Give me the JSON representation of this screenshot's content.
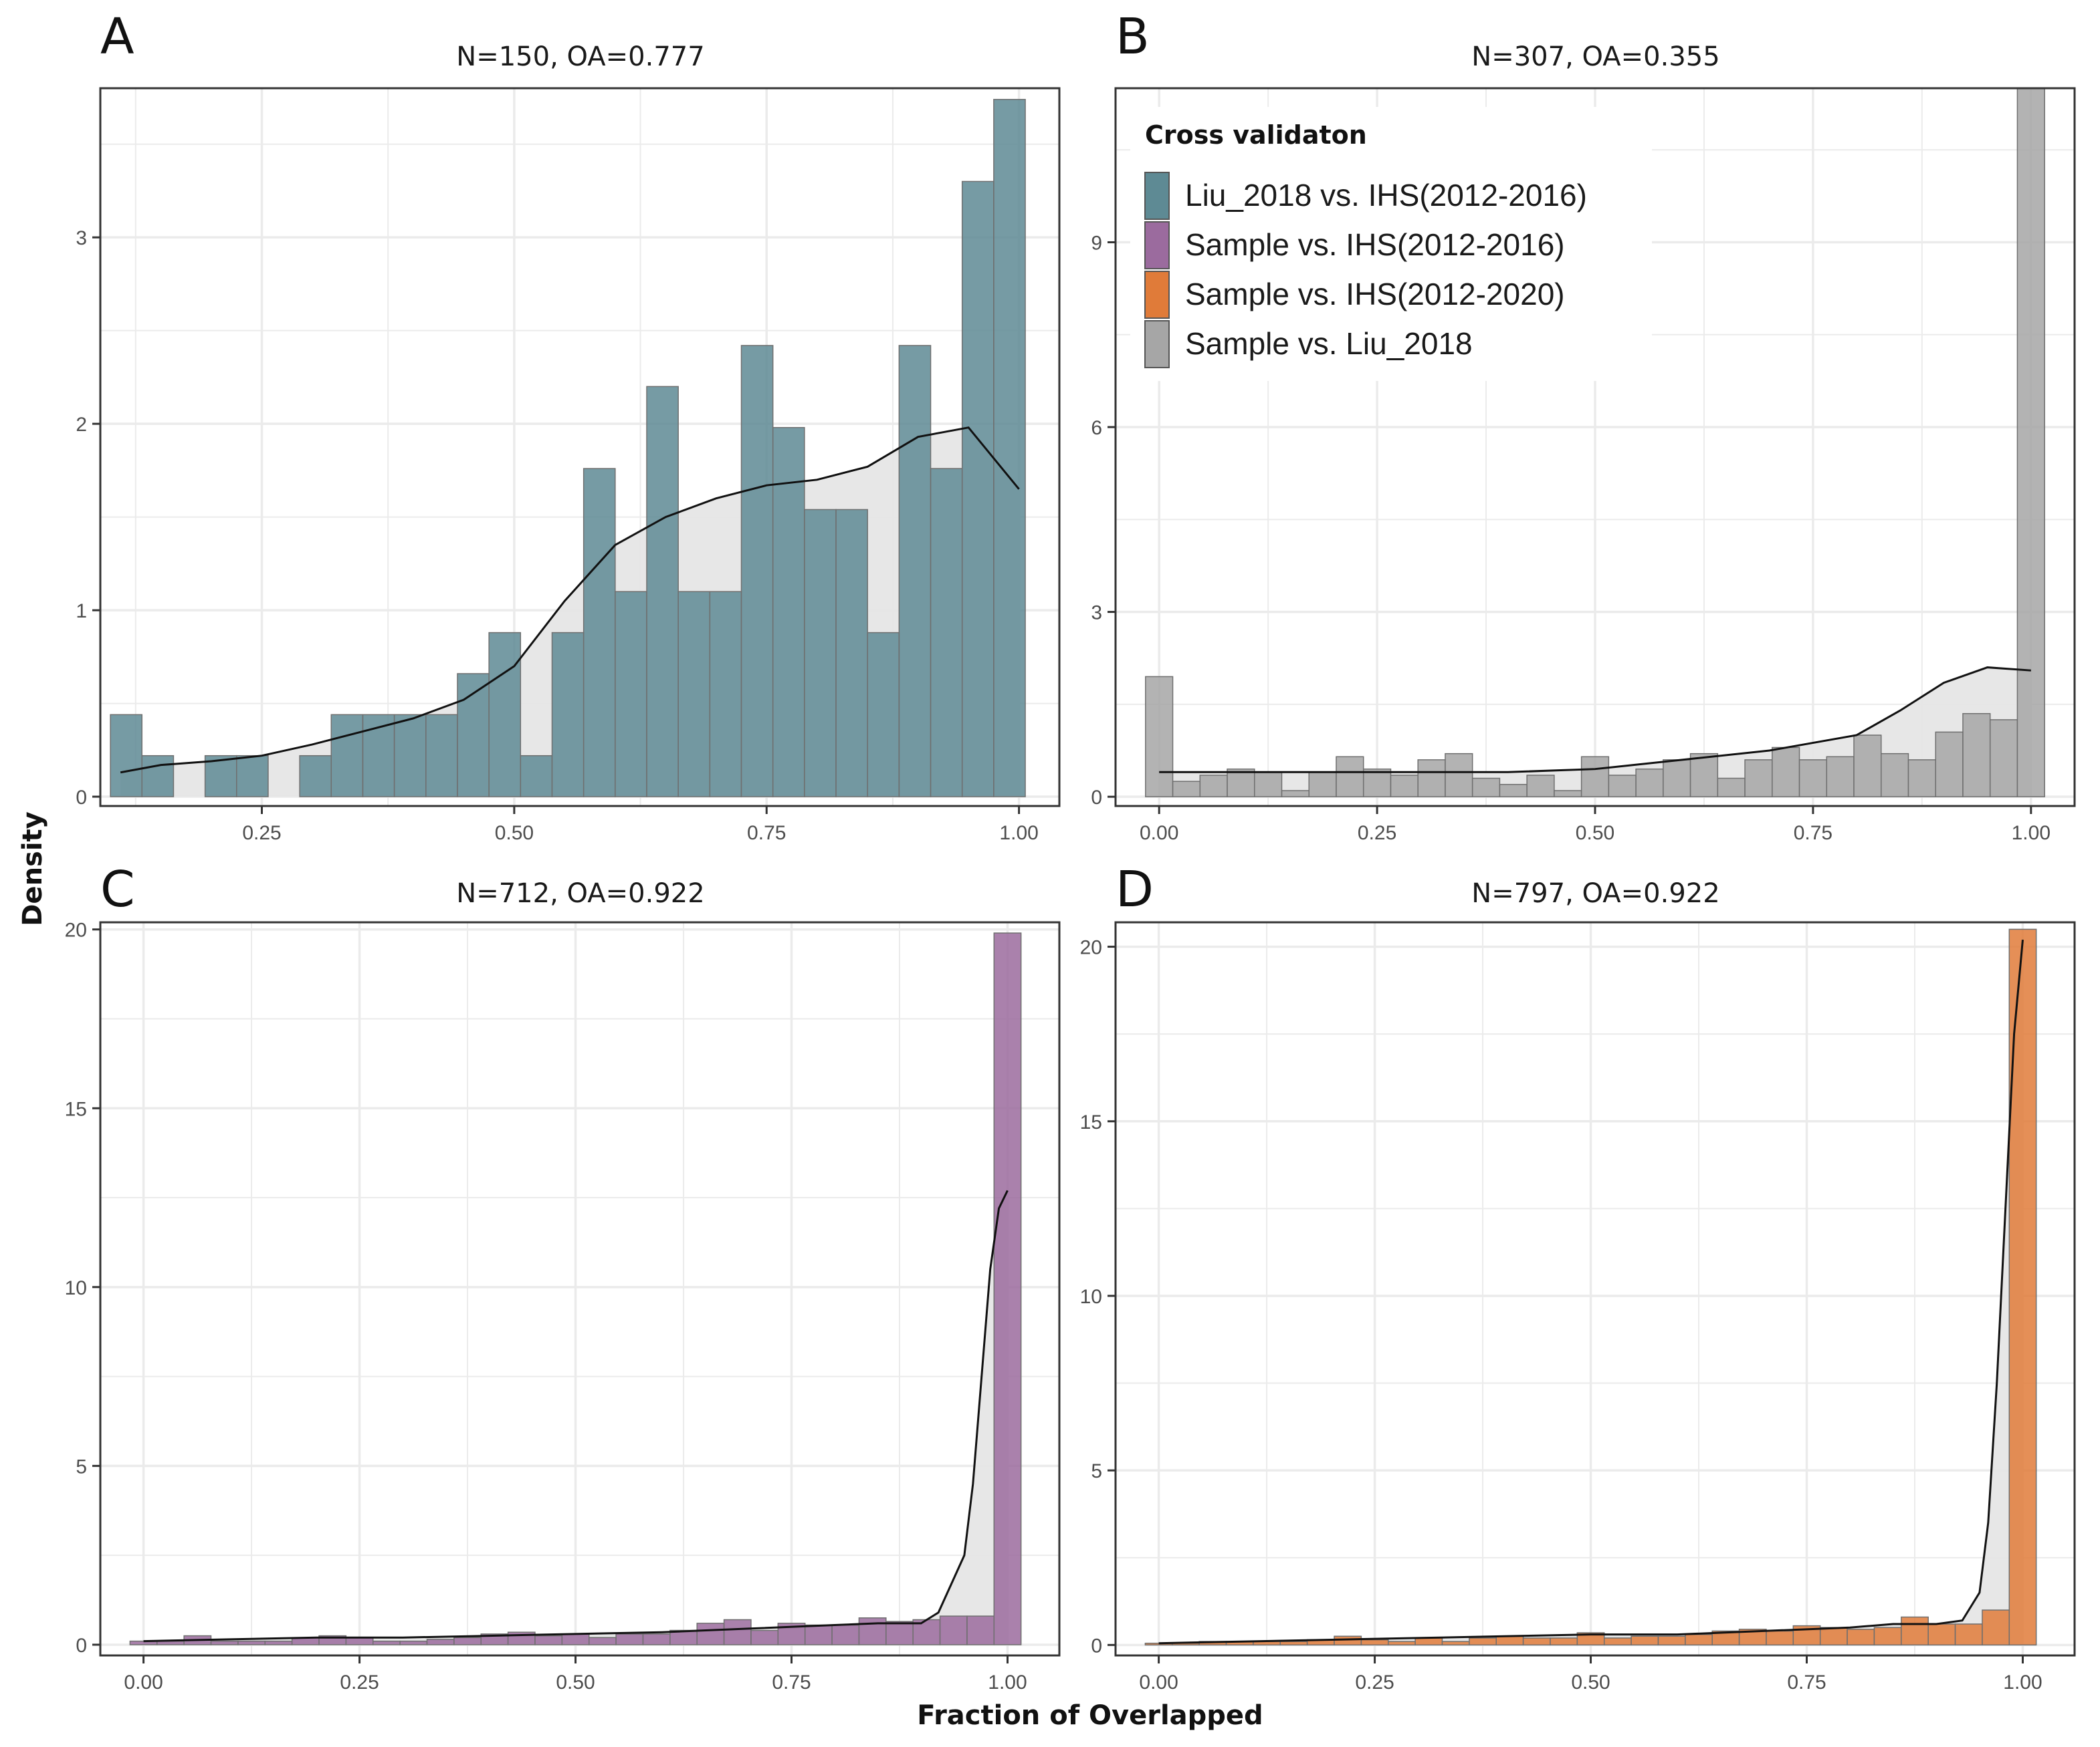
{
  "figure": {
    "x_title": "Fraction of Overlapped",
    "y_title": "Density"
  },
  "legend": {
    "title": "Cross validaton",
    "items": [
      {
        "label": "Liu_2018 vs. IHS(2012-2016)",
        "color": "#5e8a94"
      },
      {
        "label": "Sample vs. IHS(2012-2016)",
        "color": "#9b6b9e"
      },
      {
        "label": "Sample vs. IHS(2012-2020)",
        "color": "#e07b39"
      },
      {
        "label": "Sample vs. Liu_2018",
        "color": "#a6a6a6"
      }
    ]
  },
  "colors": {
    "panel_border": "#333333",
    "grid": "#ebebeb",
    "density_fill": "#e6e6e6",
    "density_line": "#111111"
  },
  "chart_data": [
    {
      "tag": "A",
      "type": "bar",
      "title": "N=150, OA=0.777",
      "xlabel": "Fraction of Overlapped",
      "ylabel": "Density",
      "color": "#5e8a94",
      "xlim": [
        0.09,
        1.04
      ],
      "ylim": [
        -0.05,
        3.8
      ],
      "x_ticks": [
        0.25,
        0.5,
        0.75,
        1.0
      ],
      "x_tick_labels": [
        "0.25",
        "0.50",
        "0.75",
        "1.00"
      ],
      "y_ticks": [
        0,
        1,
        2,
        3
      ],
      "y_tick_labels": [
        "0",
        "1",
        "2",
        "3"
      ],
      "bin_width": 0.03125,
      "bin_start": 0.1,
      "values": [
        0.44,
        0.22,
        0.0,
        0.22,
        0.22,
        0.0,
        0.22,
        0.44,
        0.44,
        0.44,
        0.44,
        0.66,
        0.88,
        0.22,
        0.88,
        1.76,
        1.1,
        2.2,
        1.1,
        1.1,
        2.42,
        1.98,
        1.54,
        1.54,
        0.88,
        2.42,
        1.76,
        3.3,
        3.74
      ],
      "density_x": [
        0.11,
        0.15,
        0.2,
        0.25,
        0.3,
        0.35,
        0.4,
        0.45,
        0.5,
        0.55,
        0.6,
        0.65,
        0.7,
        0.75,
        0.8,
        0.85,
        0.9,
        0.95,
        1.0
      ],
      "density_y": [
        0.13,
        0.17,
        0.19,
        0.22,
        0.28,
        0.35,
        0.42,
        0.52,
        0.7,
        1.05,
        1.35,
        1.5,
        1.6,
        1.67,
        1.7,
        1.77,
        1.93,
        1.98,
        1.65
      ]
    },
    {
      "tag": "B",
      "type": "bar",
      "title": "N=307, OA=0.355",
      "xlabel": "Fraction of Overlapped",
      "ylabel": "Density",
      "color": "#a6a6a6",
      "xlim": [
        -0.05,
        1.05
      ],
      "ylim": [
        -0.15,
        11.5
      ],
      "x_ticks": [
        0.0,
        0.25,
        0.5,
        0.75,
        1.0
      ],
      "x_tick_labels": [
        "0.00",
        "0.25",
        "0.50",
        "0.75",
        "1.00"
      ],
      "y_ticks": [
        0,
        3,
        6,
        9
      ],
      "y_tick_labels": [
        "0",
        "3",
        "6",
        "9"
      ],
      "bin_width": 0.03125,
      "bin_start": -0.015625,
      "values": [
        1.95,
        0.25,
        0.35,
        0.45,
        0.4,
        0.1,
        0.4,
        0.65,
        0.45,
        0.35,
        0.6,
        0.7,
        0.3,
        0.2,
        0.35,
        0.1,
        0.65,
        0.35,
        0.45,
        0.6,
        0.7,
        0.3,
        0.6,
        0.8,
        0.6,
        0.65,
        1.0,
        0.7,
        0.6,
        1.05,
        1.35,
        1.25,
        11.5
      ],
      "density_x": [
        0.0,
        0.1,
        0.2,
        0.3,
        0.4,
        0.5,
        0.6,
        0.7,
        0.8,
        0.85,
        0.9,
        0.95,
        1.0
      ],
      "density_y": [
        0.4,
        0.4,
        0.4,
        0.4,
        0.4,
        0.45,
        0.6,
        0.75,
        1.0,
        1.4,
        1.85,
        2.1,
        2.05
      ]
    },
    {
      "tag": "C",
      "type": "bar",
      "title": "N=712, OA=0.922",
      "xlabel": "Fraction of Overlapped",
      "ylabel": "Density",
      "color": "#9b6b9e",
      "xlim": [
        -0.05,
        1.06
      ],
      "ylim": [
        -0.3,
        20.2
      ],
      "x_ticks": [
        0.0,
        0.25,
        0.5,
        0.75,
        1.0
      ],
      "x_tick_labels": [
        "0.00",
        "0.25",
        "0.50",
        "0.75",
        "1.00"
      ],
      "y_ticks": [
        0,
        5,
        10,
        15,
        20
      ],
      "y_tick_labels": [
        "0",
        "5",
        "10",
        "15",
        "20"
      ],
      "bin_width": 0.03125,
      "bin_start": -0.015625,
      "values": [
        0.1,
        0.1,
        0.25,
        0.1,
        0.1,
        0.1,
        0.2,
        0.25,
        0.2,
        0.1,
        0.1,
        0.15,
        0.2,
        0.3,
        0.35,
        0.25,
        0.3,
        0.2,
        0.3,
        0.3,
        0.4,
        0.6,
        0.7,
        0.4,
        0.6,
        0.55,
        0.55,
        0.75,
        0.65,
        0.7,
        0.8,
        0.8,
        19.9
      ],
      "density_x": [
        0.0,
        0.1,
        0.2,
        0.3,
        0.4,
        0.5,
        0.6,
        0.7,
        0.8,
        0.85,
        0.9,
        0.92,
        0.95,
        0.96,
        0.97,
        0.98,
        0.99,
        1.0
      ],
      "density_y": [
        0.1,
        0.15,
        0.2,
        0.2,
        0.25,
        0.3,
        0.35,
        0.45,
        0.55,
        0.6,
        0.6,
        0.9,
        2.5,
        4.5,
        7.5,
        10.5,
        12.2,
        12.7
      ]
    },
    {
      "tag": "D",
      "type": "bar",
      "title": "N=797, OA=0.922",
      "xlabel": "Fraction of Overlapped",
      "ylabel": "Density",
      "color": "#e07b39",
      "xlim": [
        -0.05,
        1.06
      ],
      "ylim": [
        -0.3,
        20.7
      ],
      "x_ticks": [
        0.0,
        0.25,
        0.5,
        0.75,
        1.0
      ],
      "x_tick_labels": [
        "0.00",
        "0.25",
        "0.50",
        "0.75",
        "1.00"
      ],
      "y_ticks": [
        0,
        5,
        10,
        15,
        20
      ],
      "y_tick_labels": [
        "0",
        "5",
        "10",
        "15",
        "20"
      ],
      "bin_width": 0.03125,
      "bin_start": -0.015625,
      "values": [
        0.05,
        0.05,
        0.1,
        0.1,
        0.1,
        0.1,
        0.15,
        0.25,
        0.15,
        0.1,
        0.2,
        0.1,
        0.2,
        0.25,
        0.2,
        0.2,
        0.35,
        0.2,
        0.25,
        0.25,
        0.3,
        0.4,
        0.45,
        0.4,
        0.55,
        0.5,
        0.45,
        0.5,
        0.8,
        0.6,
        0.6,
        1.0,
        20.5
      ],
      "density_x": [
        0.0,
        0.1,
        0.2,
        0.3,
        0.4,
        0.5,
        0.6,
        0.7,
        0.8,
        0.85,
        0.9,
        0.93,
        0.95,
        0.96,
        0.97,
        0.98,
        0.99,
        1.0
      ],
      "density_y": [
        0.05,
        0.1,
        0.15,
        0.2,
        0.25,
        0.3,
        0.3,
        0.4,
        0.5,
        0.6,
        0.6,
        0.7,
        1.5,
        3.5,
        7.5,
        12.5,
        17.5,
        20.2
      ]
    }
  ]
}
